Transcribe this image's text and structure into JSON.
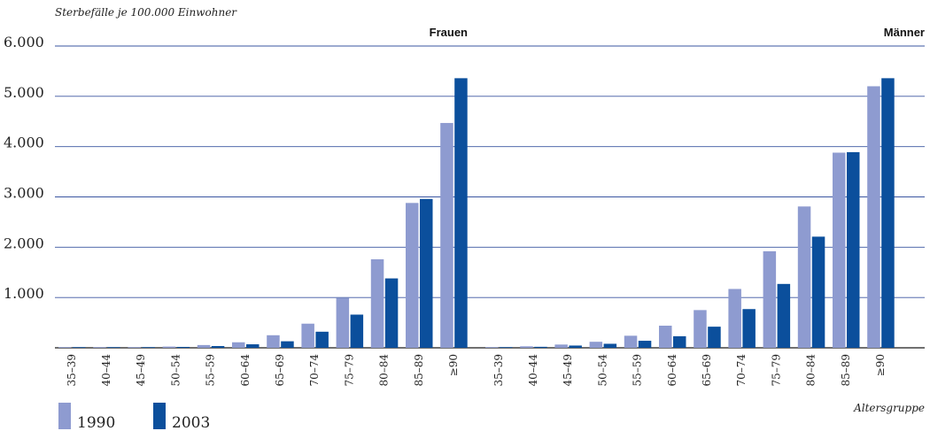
{
  "chart_data": {
    "type": "bar",
    "ylabel": "Sterbefälle je 100.000 Einwohner",
    "xlabel": "Altersgruppe",
    "ylim": [
      0,
      6000
    ],
    "yticks": [
      "",
      "1.000",
      "2.000",
      "3.000",
      "4.000",
      "5.000",
      "6.000"
    ],
    "ytick_values": [
      0,
      1000,
      2000,
      3000,
      4000,
      5000,
      6000
    ],
    "grid": true,
    "legend_position": "bottom-left",
    "colors": {
      "1990": "#8e9bd0",
      "2003": "#0b4f9c",
      "grid": "#3a55a0",
      "axis": "#1a1a1a"
    },
    "legend": [
      {
        "label": "1990",
        "color": "#8e9bd0"
      },
      {
        "label": "2003",
        "color": "#0b4f9c"
      }
    ],
    "panels": [
      {
        "title": "Frauen",
        "categories": [
          "35–39",
          "40–44",
          "45–49",
          "50–54",
          "55–59",
          "60–64",
          "65–69",
          "70–74",
          "75–79",
          "80–84",
          "85–89",
          "≥90"
        ],
        "series": [
          {
            "name": "1990",
            "values": [
              3,
              6,
              12,
              25,
              55,
              110,
              250,
              480,
              990,
              1760,
              2880,
              4470
            ]
          },
          {
            "name": "2003",
            "values": [
              2,
              4,
              8,
              18,
              35,
              70,
              130,
              320,
              660,
              1380,
              2960,
              5360
            ]
          }
        ]
      },
      {
        "title": "Männer",
        "categories": [
          "35–39",
          "40–44",
          "45–49",
          "50–54",
          "55–59",
          "60–64",
          "65–69",
          "70–74",
          "75–79",
          "80–84",
          "85–89",
          "≥90"
        ],
        "series": [
          {
            "name": "1990",
            "values": [
              10,
              30,
              65,
              120,
              240,
              440,
              750,
              1170,
              1920,
              2810,
              3880,
              5200
            ]
          },
          {
            "name": "2003",
            "values": [
              6,
              20,
              45,
              80,
              140,
              230,
              420,
              770,
              1270,
              2210,
              3890,
              5360
            ]
          }
        ]
      }
    ]
  }
}
